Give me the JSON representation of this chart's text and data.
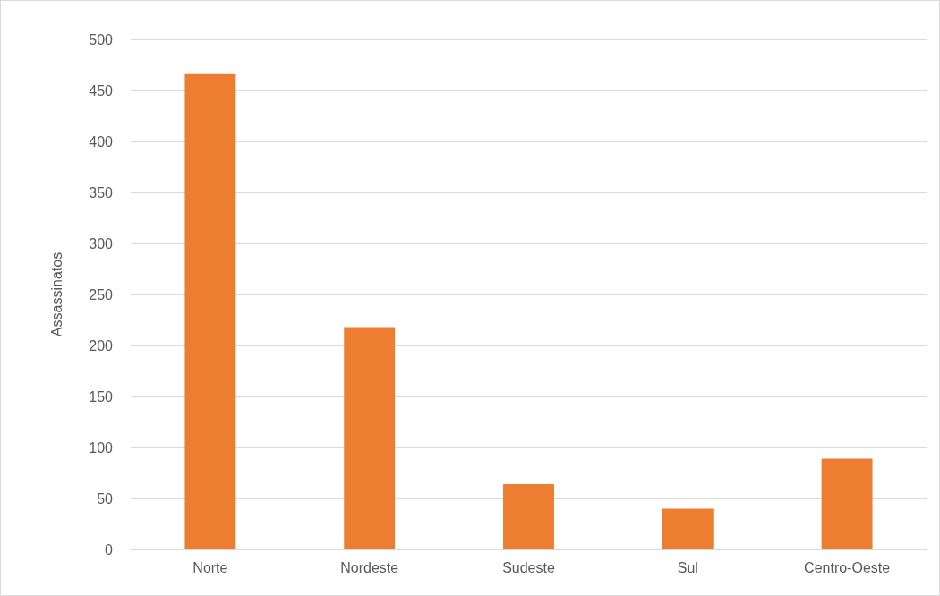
{
  "chart_data": {
    "type": "bar",
    "ylabel": "Assassinatos",
    "categories": [
      "Norte",
      "Nordeste",
      "Sudeste",
      "Sul",
      "Centro-Oeste"
    ],
    "values": [
      466,
      218,
      64,
      40,
      89
    ],
    "color": "#ed7d31",
    "ylim": [
      0,
      500
    ],
    "yticks": [
      0,
      50,
      100,
      150,
      200,
      250,
      300,
      350,
      400,
      450,
      500
    ],
    "grid": "y"
  }
}
